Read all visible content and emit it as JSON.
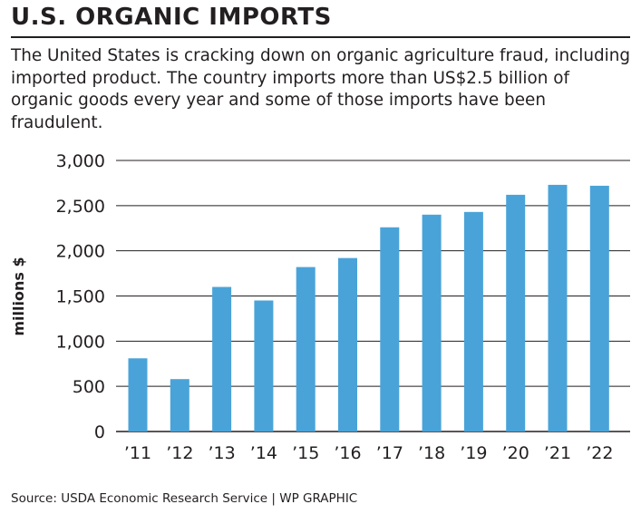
{
  "header": {
    "title": "U.S. ORGANIC IMPORTS",
    "subtitle": "The United States is cracking down on organic agriculture fraud, including imported product. The country imports more than US$2.5 billion of organic goods every year and some of those imports have been fraudulent."
  },
  "footer": {
    "source": "Source: USDA Economic Research Service  |  WP GRAPHIC"
  },
  "chart_data": {
    "type": "bar",
    "categories": [
      "’11",
      "’12",
      "’13",
      "’14",
      "’15",
      "’16",
      "’17",
      "’18",
      "’19",
      "’20",
      "’21",
      "’22"
    ],
    "values": [
      810,
      580,
      1600,
      1450,
      1820,
      1920,
      2260,
      2400,
      2430,
      2620,
      2730,
      2720
    ],
    "ylabel": "millions $",
    "ylim": [
      0,
      3000
    ],
    "yticks": [
      0,
      500,
      1000,
      1500,
      2000,
      2500,
      3000
    ],
    "ytick_labels": [
      "0",
      "500",
      "1,000",
      "1,500",
      "2,000",
      "2,500",
      "3,000"
    ],
    "grid": true,
    "bar_color": "#4aa3d8",
    "grid_color": "#231f20"
  }
}
